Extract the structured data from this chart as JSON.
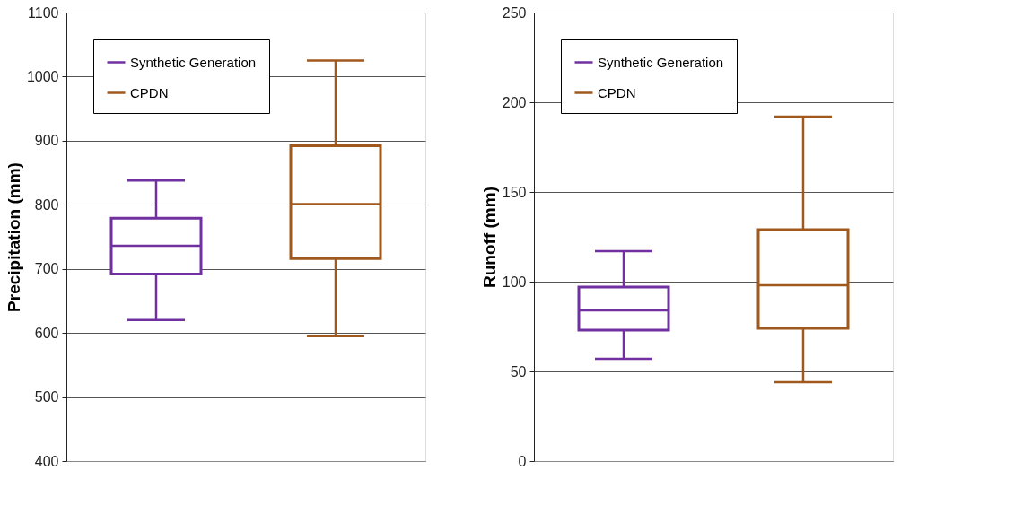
{
  "chart_data": [
    {
      "type": "box",
      "ylabel": "Precipitation (mm)",
      "categories": [
        null,
        null
      ],
      "ylim": [
        400,
        1100
      ],
      "yticks": [
        400,
        500,
        600,
        700,
        800,
        900,
        1000,
        1100
      ],
      "grid": "y",
      "legend": "top left",
      "tick_labels": "y",
      "series": [
        {
          "name": "Synthetic Generation",
          "color": "#7030a0",
          "boxes": [
            {
              "low": 620,
              "q1": 692,
              "median": 736,
              "q3": 779,
              "high": 838
            },
            null
          ]
        },
        {
          "name": "CPDN",
          "color": "#a0581c",
          "boxes": [
            null,
            {
              "low": 595,
              "q1": 716,
              "median": 801,
              "q3": 892,
              "high": 1025
            }
          ]
        }
      ]
    },
    {
      "type": "box",
      "ylabel": "Runoff (mm)",
      "categories": [
        null,
        null
      ],
      "ylim": [
        0,
        250
      ],
      "yticks": [
        0,
        50,
        100,
        150,
        200,
        250
      ],
      "grid": "y",
      "legend": "top left",
      "tick_labels": "y",
      "series": [
        {
          "name": "Synthetic Generation",
          "color": "#7030a0",
          "boxes": [
            {
              "low": 57,
              "q1": 73,
              "median": 84,
              "q3": 97,
              "high": 117
            },
            null
          ]
        },
        {
          "name": "CPDN",
          "color": "#a0581c",
          "boxes": [
            null,
            {
              "low": 44,
              "q1": 74,
              "median": 98,
              "q3": 129,
              "high": 192
            }
          ]
        }
      ]
    }
  ]
}
